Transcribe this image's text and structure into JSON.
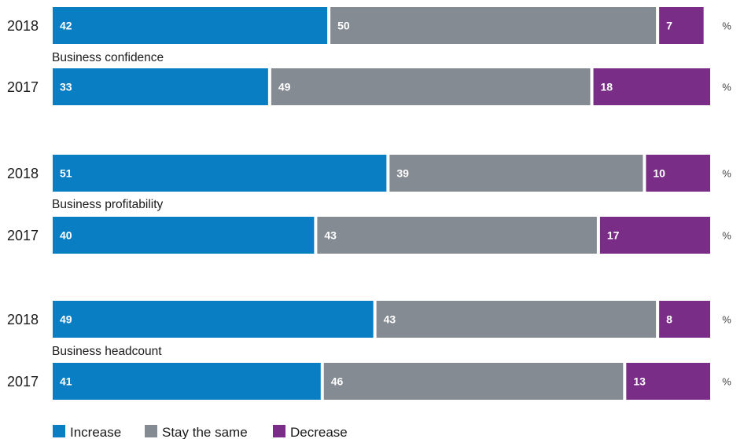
{
  "chart_data": {
    "type": "bar",
    "orientation": "horizontal",
    "stacked": true,
    "xlim": [
      0,
      100
    ],
    "legend": "bottom-left",
    "series": [
      {
        "name": "Increase",
        "color": "#0a7ec2"
      },
      {
        "name": "Stay the same",
        "color": "#858b92"
      },
      {
        "name": "Decrease",
        "color": "#7a2d86"
      }
    ],
    "groups": [
      {
        "title": "Business confidence",
        "rows": [
          {
            "year": "2018",
            "values": [
              42,
              50,
              7
            ],
            "unit": "%"
          },
          {
            "year": "2017",
            "values": [
              33,
              49,
              18
            ],
            "unit": "%"
          }
        ]
      },
      {
        "title": "Business profitability",
        "rows": [
          {
            "year": "2018",
            "values": [
              51,
              39,
              10
            ],
            "unit": "%"
          },
          {
            "year": "2017",
            "values": [
              40,
              43,
              17
            ],
            "unit": "%"
          }
        ]
      },
      {
        "title": "Business headcount",
        "rows": [
          {
            "year": "2018",
            "values": [
              49,
              43,
              8
            ],
            "unit": "%"
          },
          {
            "year": "2017",
            "values": [
              41,
              46,
              13
            ],
            "unit": "%"
          }
        ]
      }
    ]
  }
}
